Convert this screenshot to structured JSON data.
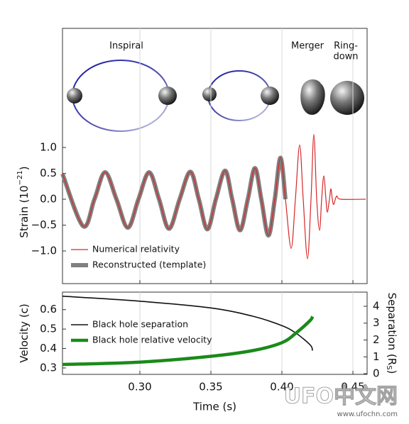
{
  "chart_data": [
    {
      "type": "line",
      "annotations": [
        "Inspiral",
        "Merger",
        "Ring-",
        "down"
      ],
      "ylabel": {
        "text": "Strain (10",
        "sup": "−21",
        "end": ")"
      },
      "x": [
        0.2455,
        0.26,
        0.268,
        0.2755,
        0.2835,
        0.2915,
        0.299,
        0.3065,
        0.3135,
        0.3205,
        0.328,
        0.3355,
        0.3415,
        0.3475,
        0.3535,
        0.36,
        0.365,
        0.3705,
        0.376,
        0.381,
        0.3855,
        0.3905,
        0.395,
        0.399,
        0.4025,
        0.4065,
        0.4095,
        0.4125,
        0.415,
        0.418,
        0.4205,
        0.4225,
        0.4245,
        0.4265,
        0.428,
        0.4295,
        0.431,
        0.432,
        0.4335,
        0.4345,
        0.4355,
        0.4365,
        0.4385,
        0.4415,
        0.459
      ],
      "series": [
        {
          "name": "Reconstructed (template)",
          "color": "#808080",
          "linewidth": 6,
          "values": [
            0.49,
            -0.52,
            0,
            0.52,
            0,
            -0.55,
            0,
            0.52,
            0,
            -0.57,
            0,
            0.53,
            0,
            -0.58,
            0,
            0.55,
            0,
            -0.6,
            0,
            0.6,
            0,
            -0.7,
            0,
            0.8,
            0,
            null,
            null,
            null,
            null,
            null,
            null,
            null,
            null,
            null,
            null,
            null,
            null,
            null,
            null,
            null,
            null,
            null,
            null,
            null,
            null
          ]
        },
        {
          "name": "Numerical relativity",
          "color": "#d62728",
          "linewidth": 1.2,
          "values": [
            0.49,
            -0.52,
            0,
            0.52,
            0,
            -0.55,
            0,
            0.52,
            0,
            -0.57,
            0,
            0.53,
            0,
            -0.58,
            0,
            0.55,
            0,
            -0.6,
            0,
            0.6,
            0,
            -0.7,
            0,
            0.8,
            0,
            -0.95,
            0,
            1.05,
            0,
            -1.15,
            0,
            1.25,
            0,
            -0.6,
            0,
            0.45,
            0,
            -0.25,
            0,
            0.2,
            0,
            -0.1,
            0.06,
            0,
            0
          ]
        }
      ],
      "legend_order": [
        1,
        0
      ],
      "xlim": [
        0.2455,
        0.46
      ],
      "xticks": [
        0.3,
        0.35,
        0.4,
        0.45
      ],
      "show_xtick_labels": false,
      "ylim": [
        -1.63,
        3.3
      ],
      "yticks": [
        {
          "value": -1,
          "label": "−1.0"
        },
        {
          "value": -0.5,
          "label": "−0.5"
        },
        {
          "value": 0,
          "label": "0.0"
        },
        {
          "value": 0.5,
          "label": "0.5"
        },
        {
          "value": 1,
          "label": "1.0"
        }
      ],
      "grid": "x",
      "legend": "lower left"
    },
    {
      "type": "line",
      "xlabel": "Time (s)",
      "ylabel": {
        "text": "Velocity (c)"
      },
      "y2label": {
        "text": "Separation (R",
        "sub": "S",
        "end": ")"
      },
      "x": [
        0.2455,
        0.3,
        0.35,
        0.38,
        0.4,
        0.41,
        0.42,
        0.4215
      ],
      "series": [
        {
          "name": "Black hole separation",
          "color": "#111111",
          "linewidth": 1.6,
          "axis": "y2",
          "values": [
            4.6,
            4.3,
            3.9,
            3.4,
            2.85,
            2.4,
            1.7,
            1.37
          ]
        },
        {
          "name": "Black hole relative velocity",
          "color": "#1a8a1a",
          "linewidth": 4.5,
          "values": [
            0.318,
            0.33,
            0.36,
            0.39,
            0.43,
            0.48,
            0.545,
            0.565
          ]
        }
      ],
      "legend_order": [
        0,
        1
      ],
      "xlim": [
        0.2455,
        0.46
      ],
      "xticks": [
        {
          "value": 0.3,
          "label": "0.30"
        },
        {
          "value": 0.35,
          "label": "0.35"
        },
        {
          "value": 0.4,
          "label": "0.40"
        },
        {
          "value": 0.45,
          "label": "0.45"
        }
      ],
      "show_xtick_labels": true,
      "ylim": [
        0.267,
        0.69
      ],
      "yticks": [
        0.3,
        0.4,
        0.5,
        0.6
      ],
      "y2lim": [
        -0.04,
        4.84
      ],
      "y2ticks": [
        0,
        1,
        2,
        3,
        4
      ],
      "grid": "x",
      "legend": "center left"
    }
  ],
  "watermark": {
    "logo": "UFO中文网",
    "url": "www.ufochn.com"
  }
}
